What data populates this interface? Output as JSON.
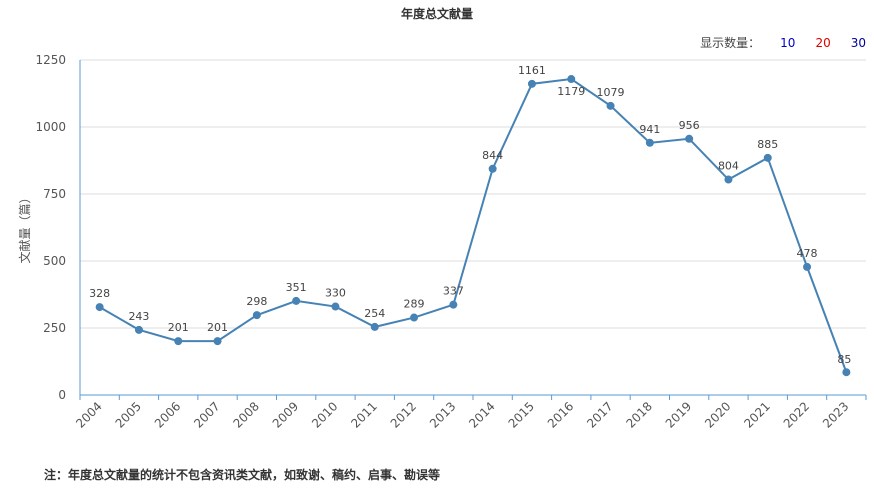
{
  "chart_data": {
    "type": "line",
    "title": "年度总文献量",
    "ylabel": "文献量（篇）",
    "xlabel": "",
    "ylim": [
      0,
      1250
    ],
    "yticks": [
      0,
      250,
      500,
      750,
      1000,
      1250
    ],
    "grid": true,
    "x": [
      "2004",
      "2005",
      "2006",
      "2007",
      "2008",
      "2009",
      "2010",
      "2011",
      "2012",
      "2013",
      "2014",
      "2015",
      "2016",
      "2017",
      "2018",
      "2019",
      "2020",
      "2021",
      "2022",
      "2023"
    ],
    "series": [
      {
        "values": [
          328,
          243,
          201,
          201,
          298,
          351,
          330,
          254,
          289,
          337,
          844,
          1161,
          1179,
          1079,
          941,
          956,
          804,
          885,
          478,
          85
        ]
      }
    ],
    "line_color": "#4682b4"
  },
  "display_count": {
    "label": "显示数量：",
    "options": [
      {
        "label": "10",
        "color": "#0000cc"
      },
      {
        "label": "20",
        "color": "#dd0000"
      },
      {
        "label": "30",
        "color": "#000099"
      }
    ]
  },
  "footnote": "注：年度总文献量的统计不包含资讯类文献，如致谢、稿约、启事、勘误等"
}
